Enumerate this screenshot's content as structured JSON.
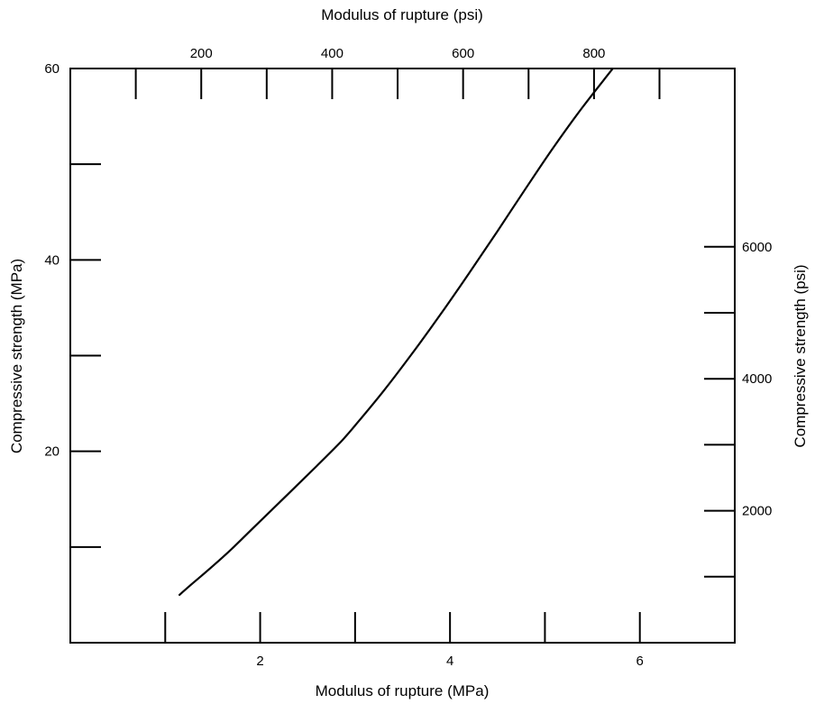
{
  "chart_data": {
    "type": "line",
    "x_bottom": {
      "label": "Modulus of rupture (MPa)",
      "range": [
        0,
        7
      ],
      "ticks": [
        1,
        2,
        3,
        4,
        5,
        6
      ],
      "tick_labels": [
        "2",
        "4",
        "6"
      ]
    },
    "x_top": {
      "label": "Modulus of rupture (psi)",
      "range": [
        0,
        1015
      ],
      "ticks": [
        100,
        200,
        300,
        400,
        500,
        600,
        700,
        800,
        900
      ],
      "tick_labels": [
        "200",
        "400",
        "600",
        "800"
      ]
    },
    "y_left": {
      "label": "Compressive strength (MPa)",
      "range": [
        0,
        60
      ],
      "ticks": [
        10,
        20,
        30,
        40,
        50
      ],
      "tick_labels": [
        "20",
        "40",
        "60"
      ]
    },
    "y_right": {
      "label": "Compressive strength (psi)",
      "range": [
        0,
        8702
      ],
      "ticks": [
        1000,
        2000,
        3000,
        4000,
        5000,
        6000
      ],
      "tick_labels": [
        "2000",
        "4000",
        "6000"
      ]
    },
    "series": [
      {
        "color": "#000000",
        "x": [
          1.15,
          1.3,
          1.5,
          1.7,
          2.0,
          2.3,
          2.6,
          2.85,
          3.0,
          3.3,
          3.6,
          3.9,
          4.2,
          4.5,
          4.8,
          5.1,
          5.4,
          5.7,
          6.05
        ],
        "y": [
          5.0,
          6.3,
          8.0,
          9.8,
          12.7,
          15.6,
          18.5,
          21.0,
          22.7,
          26.3,
          30.2,
          34.3,
          38.6,
          43.0,
          47.5,
          51.9,
          56.0,
          59.8,
          64.2
        ]
      }
    ],
    "grid": false,
    "legend": "none"
  }
}
